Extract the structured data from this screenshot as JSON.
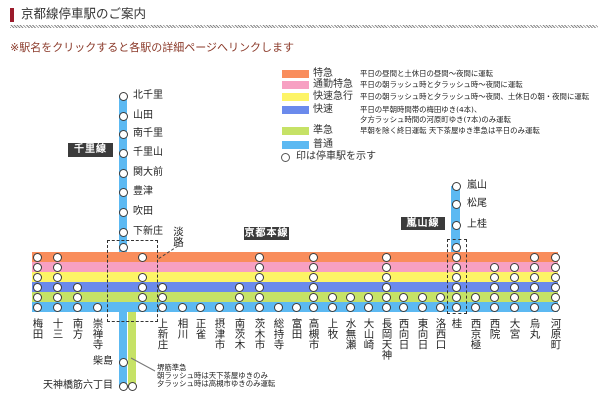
{
  "header": {
    "title": "京都線停車駅のご案内",
    "note": "※駅名をクリックすると各駅の詳細ページへリンクします",
    "accent_color": "#9b1b2b",
    "note_color": "#8b3a2a"
  },
  "services": [
    {
      "name": "特急",
      "color": "#f98d5c",
      "desc": [
        "平日の昼間と土休日の昼間～夜間に運転"
      ]
    },
    {
      "name": "通勤特急",
      "color": "#f7a0c2",
      "desc": [
        "平日の朝ラッシュ時と夕ラッシュ時～夜間に運転"
      ]
    },
    {
      "name": "快速急行",
      "color": "#fdf466",
      "desc": [
        "平日の朝ラッシュ時と夕ラッシュ時～夜間、土休日の朝・夜間に運転"
      ]
    },
    {
      "name": "快速",
      "color": "#6b8aec",
      "desc": [
        "平日の早朝時間帯の梅田ゆき(4本)、",
        "夕方ラッシュ時間の河原町ゆき(7本)のみ運転"
      ]
    },
    {
      "name": "準急",
      "color": "#c6e266",
      "desc": [
        "早朝を除く終日運転 天下茶屋ゆき準急は平日のみ運転"
      ]
    },
    {
      "name": "普通",
      "color": "#5cb9f2",
      "desc": []
    }
  ],
  "legend": {
    "stop_note": "印は停車駅を示す"
  },
  "lines": {
    "senri": {
      "label": "千里線",
      "stations": [
        "北千里",
        "山田",
        "南千里",
        "千里山",
        "関大前",
        "豊津",
        "吹田",
        "下新庄"
      ]
    },
    "arashiyama": {
      "label": "嵐山線",
      "stations": [
        "嵐山",
        "松尾",
        "上桂"
      ]
    },
    "kyoto_main": {
      "label": "京都本線"
    }
  },
  "kyoto_main_stations": [
    {
      "name": "梅田",
      "stops": [
        1,
        1,
        1,
        1,
        1,
        1
      ]
    },
    {
      "name": "十三",
      "stops": [
        1,
        1,
        1,
        1,
        1,
        1
      ]
    },
    {
      "name": "南方",
      "stops": [
        0,
        0,
        0,
        1,
        1,
        1
      ]
    },
    {
      "name": "崇禅寺",
      "stops": [
        0,
        0,
        0,
        0,
        0,
        1
      ]
    },
    {
      "name": "淡路",
      "stops": [
        1,
        0,
        1,
        1,
        1,
        1
      ]
    },
    {
      "name": "上新庄",
      "stops": [
        0,
        0,
        0,
        1,
        1,
        1
      ]
    },
    {
      "name": "相川",
      "stops": [
        0,
        0,
        0,
        0,
        0,
        1
      ]
    },
    {
      "name": "正雀",
      "stops": [
        0,
        0,
        0,
        0,
        0,
        1
      ]
    },
    {
      "name": "摂津市",
      "stops": [
        0,
        0,
        0,
        0,
        0,
        1
      ]
    },
    {
      "name": "南茨木",
      "stops": [
        0,
        0,
        0,
        1,
        1,
        1
      ]
    },
    {
      "name": "茨木市",
      "stops": [
        1,
        1,
        1,
        1,
        1,
        1
      ]
    },
    {
      "name": "総持寺",
      "stops": [
        0,
        0,
        0,
        0,
        0,
        1
      ]
    },
    {
      "name": "富田",
      "stops": [
        0,
        0,
        0,
        0,
        0,
        1
      ]
    },
    {
      "name": "高槻市",
      "stops": [
        1,
        1,
        1,
        1,
        1,
        1
      ]
    },
    {
      "name": "上牧",
      "stops": [
        0,
        0,
        0,
        0,
        1,
        1
      ]
    },
    {
      "name": "水無瀬",
      "stops": [
        0,
        0,
        0,
        0,
        1,
        1
      ]
    },
    {
      "name": "大山崎",
      "stops": [
        0,
        0,
        0,
        0,
        1,
        1
      ]
    },
    {
      "name": "長岡天神",
      "stops": [
        1,
        1,
        1,
        1,
        1,
        1
      ]
    },
    {
      "name": "西向日",
      "stops": [
        0,
        0,
        0,
        0,
        1,
        1
      ]
    },
    {
      "name": "東向日",
      "stops": [
        0,
        0,
        0,
        0,
        1,
        1
      ]
    },
    {
      "name": "洛西口",
      "stops": [
        0,
        0,
        0,
        0,
        1,
        1
      ]
    },
    {
      "name": "桂",
      "stops": [
        1,
        1,
        1,
        1,
        1,
        1
      ]
    },
    {
      "name": "西京極",
      "stops": [
        0,
        0,
        0,
        0,
        1,
        1
      ]
    },
    {
      "name": "西院",
      "stops": [
        0,
        1,
        1,
        1,
        1,
        1
      ]
    },
    {
      "name": "大宮",
      "stops": [
        0,
        1,
        1,
        1,
        1,
        1
      ]
    },
    {
      "name": "烏丸",
      "stops": [
        1,
        1,
        1,
        1,
        1,
        1
      ]
    },
    {
      "name": "河原町",
      "stops": [
        1,
        1,
        1,
        1,
        1,
        1
      ]
    }
  ],
  "sakaisuji_branch": {
    "stations": [
      "柴島",
      "天神橋筋六丁目"
    ],
    "annotation": [
      "堺筋準急",
      "朝ラッシュ時は天下茶屋ゆきのみ",
      "夕ラッシュ時は高槻市ゆきのみ運転"
    ]
  }
}
